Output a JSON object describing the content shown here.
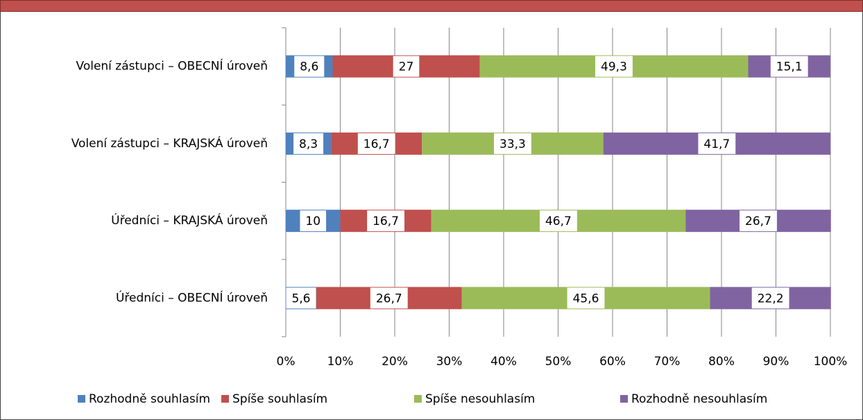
{
  "chart_data": {
    "type": "stacked_barh",
    "categories": [
      "Volení zástupci – OBECNÍ úroveň",
      "Volení zástupci – KRAJSKÁ úroveň",
      "Úředníci – KRAJSKÁ úroveň",
      "Úředníci – OBECNÍ úroveň"
    ],
    "series": [
      {
        "name": "Rozhodně souhlasím",
        "color": "#4f81bd",
        "values": [
          8.6,
          8.3,
          10,
          5.6
        ],
        "value_labels": [
          "8,6",
          "8,3",
          "10",
          "5,6"
        ]
      },
      {
        "name": "Spíše souhlasím",
        "color": "#c0504d",
        "values": [
          27,
          16.7,
          16.7,
          26.7
        ],
        "value_labels": [
          "27",
          "16,7",
          "16,7",
          "26,7"
        ]
      },
      {
        "name": "Spíše nesouhlasím",
        "color": "#9bbb59",
        "values": [
          49.3,
          33.3,
          46.7,
          45.6
        ],
        "value_labels": [
          "49,3",
          "33,3",
          "46,7",
          "45,6"
        ]
      },
      {
        "name": "Rozhodně nesouhlasím",
        "color": "#8064a2",
        "values": [
          15.1,
          41.7,
          26.7,
          22.2
        ],
        "value_labels": [
          "15,1",
          "41,7",
          "26,7",
          "22,2"
        ]
      }
    ],
    "xlim": [
      0,
      100
    ],
    "xticks": [
      {
        "value": 0,
        "label": "0%"
      },
      {
        "value": 10,
        "label": "10%"
      },
      {
        "value": 20,
        "label": "20%"
      },
      {
        "value": 30,
        "label": "30%"
      },
      {
        "value": 40,
        "label": "40%"
      },
      {
        "value": 50,
        "label": "50%"
      },
      {
        "value": 60,
        "label": "60%"
      },
      {
        "value": 70,
        "label": "70%"
      },
      {
        "value": 80,
        "label": "80%"
      },
      {
        "value": 90,
        "label": "90%"
      },
      {
        "value": 100,
        "label": "100%"
      }
    ],
    "grid": true,
    "legend": "bottom"
  }
}
